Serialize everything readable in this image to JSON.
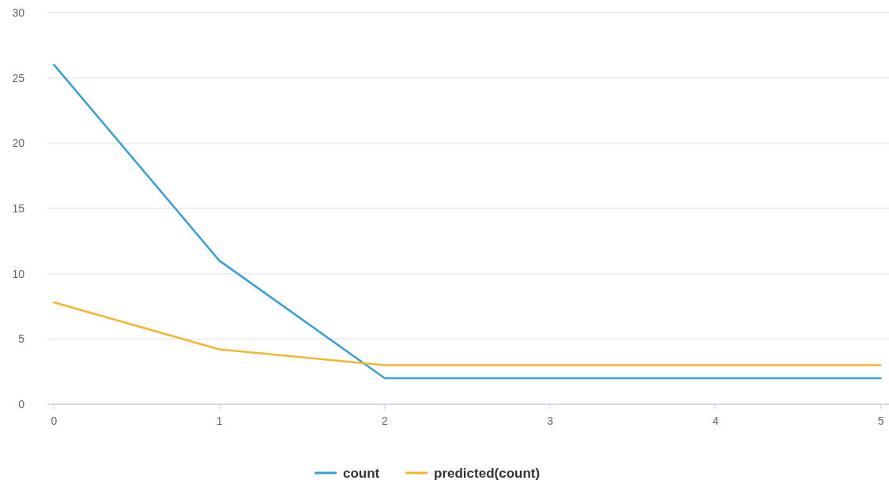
{
  "chart_data": {
    "type": "line",
    "x": [
      0,
      1,
      2,
      3,
      4,
      5
    ],
    "series": [
      {
        "name": "count",
        "color": "#3a9fd1",
        "values": [
          26,
          11,
          2,
          2,
          2,
          2
        ]
      },
      {
        "name": "predicted(count)",
        "color": "#f2b731",
        "values": [
          7.8,
          4.2,
          3,
          3,
          3,
          3
        ]
      }
    ],
    "xlim": [
      -0.04,
      5.05
    ],
    "xticks": [
      0,
      1,
      2,
      3,
      4,
      5
    ],
    "ylim": [
      0,
      30
    ],
    "yticks": [
      0,
      5,
      10,
      15,
      20,
      25,
      30
    ],
    "grid": "y",
    "legend": "bottom",
    "marker": "none",
    "line_style": "solid"
  }
}
